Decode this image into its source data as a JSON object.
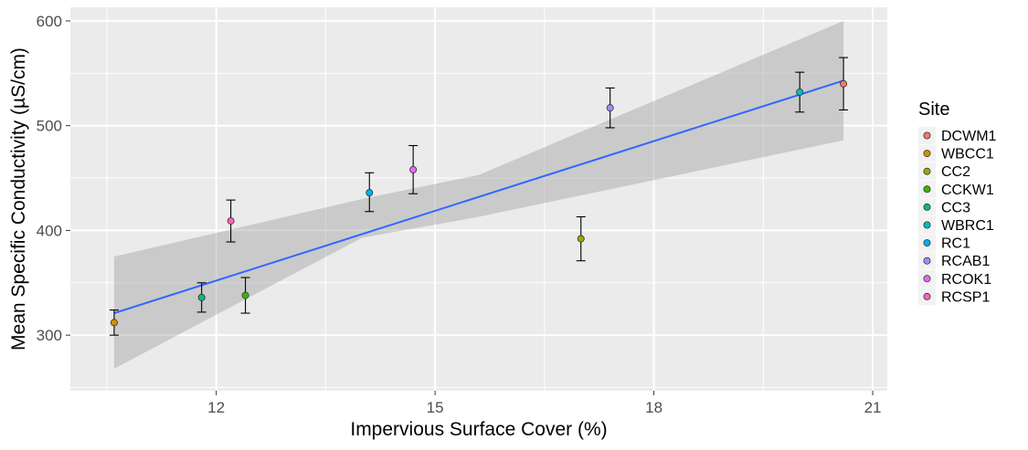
{
  "chart_data": {
    "type": "scatter",
    "xlabel": "Impervious Surface Cover (%)",
    "ylabel": "Mean Specific Conductivity (µS/cm)",
    "xlim": [
      10.0,
      21.2
    ],
    "ylim": [
      247,
      613
    ],
    "x_ticks": [
      12,
      15,
      18,
      21
    ],
    "y_ticks": [
      300,
      400,
      500,
      600
    ],
    "grid": true,
    "legend_title": "Site",
    "legend_position": "right",
    "points": [
      {
        "site": "DCWM1",
        "x": 20.6,
        "y": 540,
        "ymin": 515,
        "ymax": 565,
        "color": "#F8766D"
      },
      {
        "site": "WBCC1",
        "x": 10.6,
        "y": 312,
        "ymin": 300,
        "ymax": 324,
        "color": "#D89000"
      },
      {
        "site": "CC2",
        "x": 17.0,
        "y": 392,
        "ymin": 371,
        "ymax": 413,
        "color": "#A3A500"
      },
      {
        "site": "CCKW1",
        "x": 12.4,
        "y": 338,
        "ymin": 321,
        "ymax": 355,
        "color": "#39B600"
      },
      {
        "site": "CC3",
        "x": 11.8,
        "y": 336,
        "ymin": 322,
        "ymax": 350,
        "color": "#00BF7D"
      },
      {
        "site": "WBRC1",
        "x": 20.0,
        "y": 532,
        "ymin": 513,
        "ymax": 551,
        "color": "#00BFC4"
      },
      {
        "site": "RC1",
        "x": 14.1,
        "y": 436,
        "ymin": 418,
        "ymax": 455,
        "color": "#00B0F6"
      },
      {
        "site": "RCAB1",
        "x": 17.4,
        "y": 517,
        "ymin": 498,
        "ymax": 536,
        "color": "#9590FF"
      },
      {
        "site": "RCOK1",
        "x": 14.7,
        "y": 458,
        "ymin": 435,
        "ymax": 481,
        "color": "#E76BF3"
      },
      {
        "site": "RCSP1",
        "x": 12.2,
        "y": 409,
        "ymin": 389,
        "ymax": 429,
        "color": "#FF62BC"
      }
    ],
    "fit": {
      "x": [
        10.6,
        20.6
      ],
      "y": [
        321,
        543
      ],
      "color": "#3366FF"
    },
    "ribbon": {
      "x": [
        10.6,
        14.0,
        15.6,
        20.6
      ],
      "upper": [
        375,
        430,
        453,
        600
      ],
      "lower": [
        268,
        393,
        413,
        486
      ],
      "color": "#999999"
    }
  }
}
